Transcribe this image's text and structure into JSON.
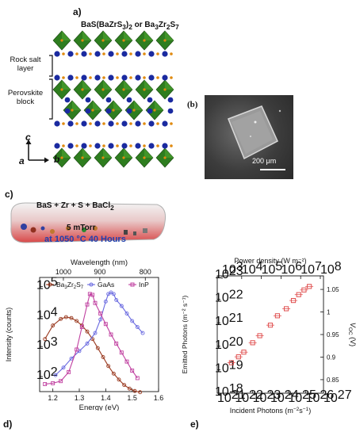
{
  "panel_a": {
    "letter": "a)",
    "title": "BaS(BaZrS3)2 or Ba3Zr2S7",
    "label_rocksalt_1": "Rock salt",
    "label_rocksalt_2": "layer",
    "label_perovskite_1": "Perovskite",
    "label_perovskite_2": "block",
    "axis_c": "c",
    "axis_a": "a",
    "axis_b": "b",
    "colors": {
      "octahedra": "#2e7d1f",
      "ba_atom": "#1a2aa0",
      "s_atom": "#e08a10"
    }
  },
  "panel_b": {
    "letter": "(b)",
    "scale_bar_label": "200 μm"
  },
  "panel_c": {
    "letter": "c)",
    "reaction": "BaS + Zr + S + BaCl2",
    "pressure": "5 mTorr",
    "condition": "at 1050 °C 40 Hours"
  },
  "panel_d": {
    "letter": "d)"
  },
  "panel_e": {
    "letter": "e)"
  },
  "chart_data": [
    {
      "type": "line",
      "panel": "d",
      "xlabel": "Energy (eV)",
      "x2label": "Wavelength (nm)",
      "ylabel": "Intensity (counts)",
      "xlim": [
        1.15,
        1.6
      ],
      "ylim_log10": [
        1.5,
        5.3
      ],
      "x_ticks": [
        1.2,
        1.3,
        1.4,
        1.5,
        1.6
      ],
      "x2_ticks": [
        1000,
        900,
        800
      ],
      "y_ticks": [
        "10^2",
        "10^3",
        "10^4",
        "10^5"
      ],
      "legend": "top",
      "series": [
        {
          "name": "Ba3Zr2S7",
          "color": "#9a3a20",
          "marker": "circle",
          "x": [
            1.17,
            1.2,
            1.23,
            1.25,
            1.27,
            1.29,
            1.31,
            1.33,
            1.35,
            1.37,
            1.39,
            1.41,
            1.43,
            1.45,
            1.47,
            1.49,
            1.51,
            1.53
          ],
          "y": [
            3.25,
            3.7,
            3.92,
            3.98,
            3.95,
            3.85,
            3.7,
            3.5,
            3.25,
            2.95,
            2.65,
            2.35,
            2.1,
            1.9,
            1.72,
            1.6,
            1.52,
            1.48
          ]
        },
        {
          "name": "GaAs",
          "color": "#6a6ae0",
          "marker": "circle",
          "x": [
            1.21,
            1.24,
            1.27,
            1.3,
            1.33,
            1.36,
            1.38,
            1.4,
            1.41,
            1.42,
            1.43,
            1.44,
            1.46,
            1.48,
            1.5,
            1.52,
            1.54
          ],
          "y": [
            2.05,
            2.3,
            2.6,
            2.85,
            3.1,
            3.45,
            3.9,
            4.5,
            4.75,
            4.8,
            4.75,
            4.55,
            4.35,
            4.1,
            3.85,
            3.65,
            3.45
          ]
        },
        {
          "name": "InP",
          "color": "#c040a0",
          "marker": "square",
          "x": [
            1.17,
            1.2,
            1.23,
            1.26,
            1.29,
            1.31,
            1.33,
            1.34,
            1.35,
            1.36,
            1.38,
            1.4,
            1.42,
            1.44,
            1.46,
            1.48,
            1.5,
            1.52
          ],
          "y": [
            1.75,
            1.78,
            1.85,
            2.15,
            2.9,
            3.65,
            4.4,
            4.75,
            4.72,
            4.45,
            4.1,
            3.75,
            3.4,
            3.1,
            2.8,
            2.5,
            2.2,
            1.95
          ]
        }
      ]
    },
    {
      "type": "scatter",
      "panel": "e",
      "xlabel": "Incident Photons (m^-2 s^-1)",
      "x2label": "Power density (W m^-2)",
      "ylabel": "Emitted Photons (m^-2 s^-1)",
      "y2label": "VOC (V)",
      "xlim_log10": [
        21,
        27
      ],
      "ylim_log10": [
        18,
        23
      ],
      "x_ticks": [
        "10^21",
        "10^22",
        "10^23",
        "10^24",
        "10^25",
        "10^26",
        "10^27"
      ],
      "x2_ticks": [
        "10^3",
        "10^4",
        "10^5",
        "10^6",
        "10^7",
        "10^8"
      ],
      "y_ticks": [
        "10^18",
        "10^19",
        "10^20",
        "10^21",
        "10^22",
        "10^23"
      ],
      "y2_ticks": [
        0.85,
        0.9,
        0.95,
        1.0,
        1.05
      ],
      "series": [
        {
          "color": "#e05050",
          "marker": "open-square",
          "x_log10": [
            21.8,
            22.2,
            22.5,
            23.0,
            23.4,
            24.0,
            24.4,
            24.9,
            25.3,
            25.6,
            25.9,
            26.2
          ],
          "y_log10": [
            19.3,
            19.55,
            19.75,
            20.15,
            20.45,
            20.9,
            21.3,
            21.6,
            21.95,
            22.2,
            22.4,
            22.55
          ]
        }
      ]
    }
  ]
}
